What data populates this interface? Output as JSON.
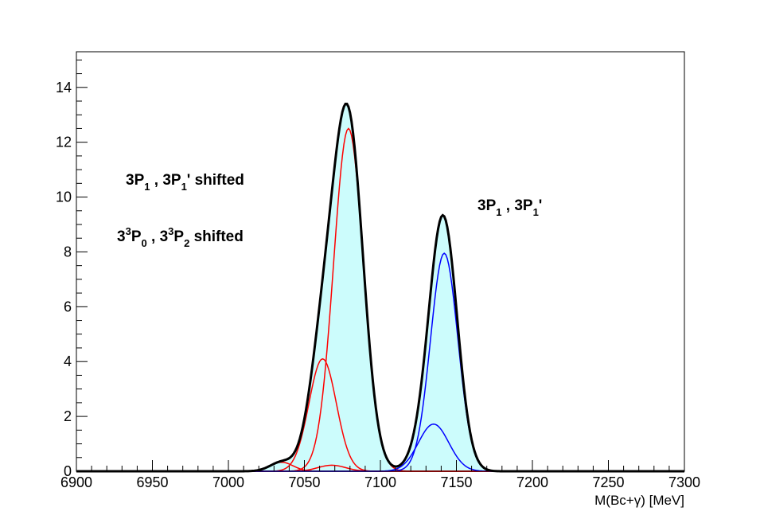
{
  "chart_data": {
    "type": "line",
    "title": "",
    "xlabel": "M(Bc+γ) [MeV]",
    "ylabel": "",
    "xlim": [
      6900,
      7300
    ],
    "ylim": [
      0,
      15.3
    ],
    "x_ticks": [
      "6900",
      "6950",
      "7000",
      "7050",
      "7100",
      "7150",
      "7200",
      "7250",
      "7300"
    ],
    "y_ticks": [
      "0",
      "2",
      "4",
      "6",
      "8",
      "10",
      "12",
      "14"
    ],
    "grid": false,
    "legend": "none",
    "annotations": [
      {
        "id": "left1",
        "parts": [
          "3P",
          "1",
          " , 3P",
          "1",
          "' shifted"
        ]
      },
      {
        "id": "left2",
        "parts": [
          "3",
          "3",
          "P",
          "0",
          " , 3",
          "3",
          "P",
          "2",
          " shifted"
        ]
      },
      {
        "id": "right1",
        "parts": [
          "3P",
          "1",
          " , 3P",
          "1",
          "'"
        ]
      }
    ],
    "components": [
      {
        "color": "#ff0000",
        "mean": 7079,
        "sigma": 9.8,
        "amplitude": 12.5
      },
      {
        "color": "#ff0000",
        "mean": 7062,
        "sigma": 9.0,
        "amplitude": 4.1
      },
      {
        "color": "#ff0000",
        "mean": 7035,
        "sigma": 7.5,
        "amplitude": 0.33
      },
      {
        "color": "#ff0000",
        "mean": 7068,
        "sigma": 9.0,
        "amplitude": 0.22
      },
      {
        "color": "#0000ff",
        "mean": 7142,
        "sigma": 9.0,
        "amplitude": 7.95
      },
      {
        "color": "#0000ff",
        "mean": 7135,
        "sigma": 10.0,
        "amplitude": 1.72
      }
    ],
    "total": {
      "color": "#000000",
      "fill": "#ccfcfc"
    }
  }
}
